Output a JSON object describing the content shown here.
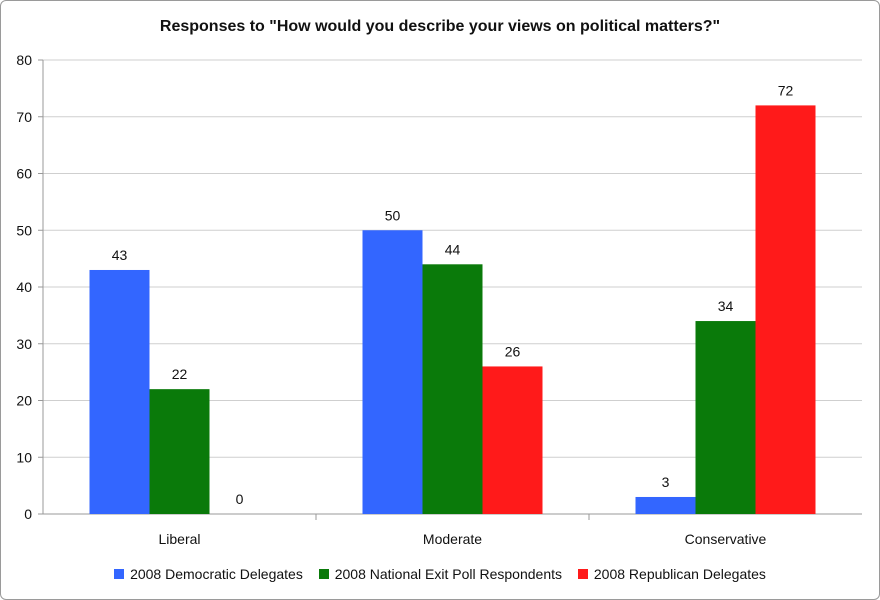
{
  "chart_data": {
    "type": "bar",
    "title": "Responses to \"How would you describe your views on political matters?\"",
    "xlabel": "",
    "ylabel": "",
    "categories": [
      "Liberal",
      "Moderate",
      "Conservative"
    ],
    "series": [
      {
        "name": "2008 Democratic Delegates",
        "color": "#3366ff",
        "values": [
          43,
          50,
          3
        ]
      },
      {
        "name": "2008 National Exit Poll Respondents",
        "color": "#0a7a0a",
        "values": [
          22,
          44,
          34
        ]
      },
      {
        "name": "2008 Republican Delegates",
        "color": "#ff1a1a",
        "values": [
          0,
          26,
          72
        ]
      }
    ],
    "ylim": [
      0,
      80
    ],
    "yticks": [
      0,
      10,
      20,
      30,
      40,
      50,
      60,
      70,
      80
    ],
    "grid": true,
    "legend_position": "bottom"
  }
}
